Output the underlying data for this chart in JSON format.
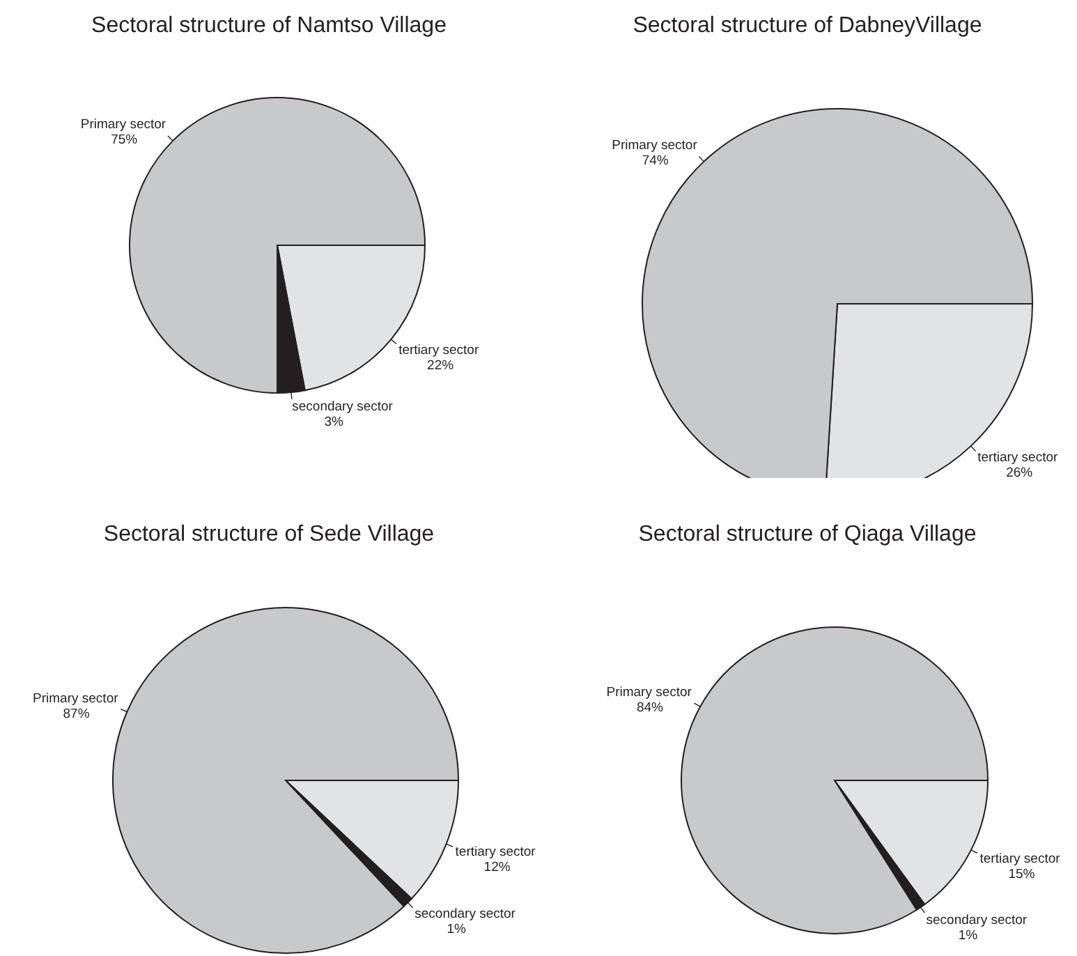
{
  "chart_data": [
    {
      "type": "pie",
      "title": "Sectoral structure of Namtso Village",
      "categories": [
        "tertiary sector",
        "secondary sector",
        "Primary sector"
      ],
      "values": [
        22,
        3,
        75
      ],
      "colors": [
        "#e2e3e5",
        "#231f20",
        "#c8c9cb"
      ],
      "value_labels": [
        "22%",
        "3%",
        "75%"
      ]
    },
    {
      "type": "pie",
      "title": "Sectoral structure of DabneyVillage",
      "categories": [
        "tertiary sector",
        "Primary sector"
      ],
      "values": [
        26,
        74
      ],
      "colors": [
        "#e2e3e5",
        "#c8c9cb"
      ],
      "value_labels": [
        "26%",
        "74%"
      ]
    },
    {
      "type": "pie",
      "title": "Sectoral structure of Sede Village",
      "categories": [
        "tertiary sector",
        "secondary sector",
        "Primary sector"
      ],
      "values": [
        12,
        1,
        87
      ],
      "colors": [
        "#e2e3e5",
        "#231f20",
        "#c8c9cb"
      ],
      "value_labels": [
        "12%",
        "1%",
        "87%"
      ]
    },
    {
      "type": "pie",
      "title": "Sectoral structure of Qiaga Village",
      "categories": [
        "tertiary sector",
        "secondary sector",
        "Primary sector"
      ],
      "values": [
        15,
        1,
        84
      ],
      "colors": [
        "#e2e3e5",
        "#231f20",
        "#c8c9cb"
      ],
      "value_labels": [
        "15%",
        "1%",
        "84%"
      ]
    }
  ]
}
